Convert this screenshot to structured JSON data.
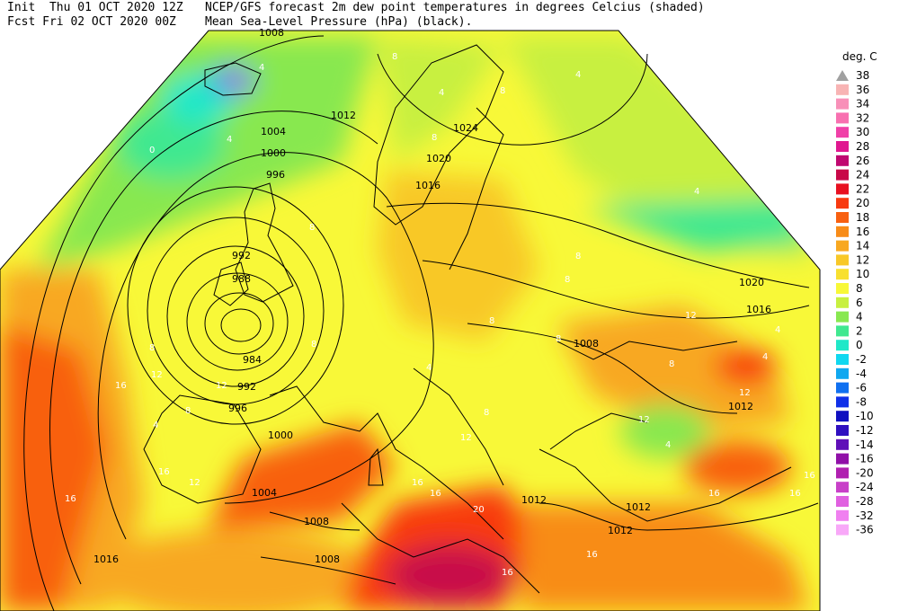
{
  "header": {
    "init_label": "Init",
    "init_time": "Thu 01 OCT 2020 12Z",
    "fcst_label": "Fcst",
    "fcst_time": "Fri 02 OCT 2020 00Z",
    "title": "NCEP/GFS forecast 2m dew point temperatures in degrees Celcius (shaded)",
    "subtitle": "Mean Sea-Level Pressure (hPa) (black)."
  },
  "legend": {
    "unit": "deg. C",
    "levels": [
      {
        "v": "38",
        "c": "#a0a0a0"
      },
      {
        "v": "36",
        "c": "#f8b4b4"
      },
      {
        "v": "34",
        "c": "#f890b8"
      },
      {
        "v": "32",
        "c": "#f870b0"
      },
      {
        "v": "30",
        "c": "#f040a8"
      },
      {
        "v": "28",
        "c": "#e01890"
      },
      {
        "v": "26",
        "c": "#c00870"
      },
      {
        "v": "24",
        "c": "#c80848"
      },
      {
        "v": "22",
        "c": "#e81020"
      },
      {
        "v": "20",
        "c": "#f83a10"
      },
      {
        "v": "18",
        "c": "#f86010"
      },
      {
        "v": "16",
        "c": "#f88c18"
      },
      {
        "v": "14",
        "c": "#f8a820"
      },
      {
        "v": "12",
        "c": "#f8c828"
      },
      {
        "v": "10",
        "c": "#f8e030"
      },
      {
        "v": "8",
        "c": "#f8f838"
      },
      {
        "v": "6",
        "c": "#c8f040"
      },
      {
        "v": "4",
        "c": "#88e850"
      },
      {
        "v": "2",
        "c": "#40e890"
      },
      {
        "v": "0",
        "c": "#20e8c8"
      },
      {
        "v": "-2",
        "c": "#10d8f0"
      },
      {
        "v": "-4",
        "c": "#10a8f0"
      },
      {
        "v": "-6",
        "c": "#1070f0"
      },
      {
        "v": "-8",
        "c": "#1030e8"
      },
      {
        "v": "-10",
        "c": "#1010c0"
      },
      {
        "v": "-12",
        "c": "#3010c0"
      },
      {
        "v": "-14",
        "c": "#6010b8"
      },
      {
        "v": "-16",
        "c": "#9010a8"
      },
      {
        "v": "-20",
        "c": "#b020b0"
      },
      {
        "v": "-24",
        "c": "#c840c8"
      },
      {
        "v": "-28",
        "c": "#e060e0"
      },
      {
        "v": "-32",
        "c": "#f080f0"
      },
      {
        "v": "-36",
        "c": "#f8a8f8"
      }
    ]
  },
  "isobar_labels": [
    "1008",
    "1012",
    "1004",
    "1000",
    "996",
    "992",
    "988",
    "984",
    "992",
    "996",
    "1000",
    "1004",
    "1008",
    "1008",
    "1016",
    "1016",
    "1020",
    "1024",
    "1020",
    "1016",
    "1012",
    "1008",
    "1012",
    "1012",
    "1012"
  ],
  "dewpoint_labels": [
    "4",
    "4",
    "0",
    "4",
    "8",
    "8",
    "8",
    "8",
    "8",
    "4",
    "8",
    "12",
    "12",
    "16",
    "16",
    "16",
    "16",
    "8",
    "12",
    "12",
    "8",
    "8",
    "12",
    "4",
    "8",
    "8",
    "4",
    "12",
    "16",
    "16",
    "20",
    "16",
    "16",
    "16",
    "12",
    "4",
    "8",
    "4",
    "8",
    "4",
    "16",
    "4"
  ]
}
